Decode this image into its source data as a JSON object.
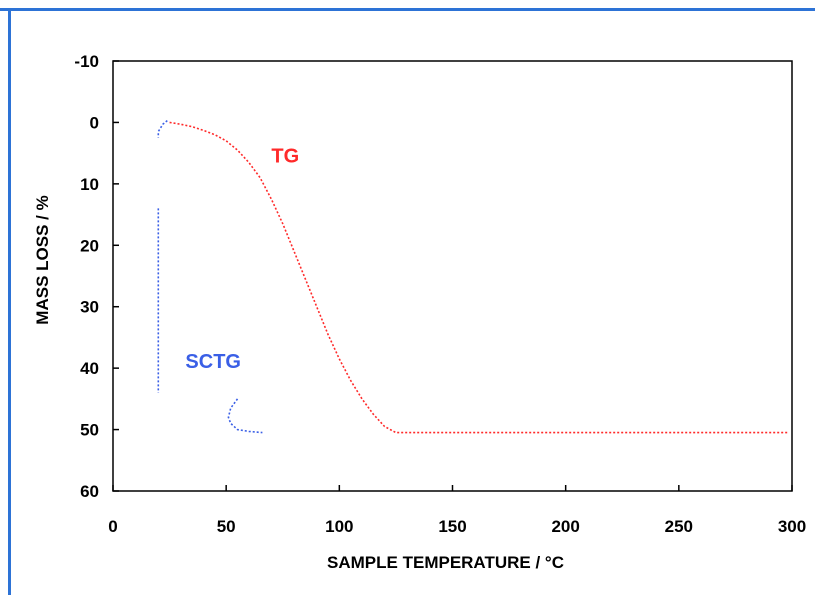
{
  "chart_data": {
    "type": "line",
    "xlabel": "SAMPLE TEMPERATURE / °C",
    "ylabel": "MASS LOSS / %",
    "xlim": [
      0,
      300
    ],
    "ylim": [
      -10,
      60
    ],
    "y_inverted": true,
    "x_ticks": [
      "0",
      "50",
      "100",
      "150",
      "200",
      "250",
      "300"
    ],
    "y_ticks": [
      "-10",
      "0",
      "10",
      "20",
      "30",
      "40",
      "50",
      "60"
    ],
    "grid": false,
    "series": [
      {
        "name": "TG",
        "color": "#ff2a2a",
        "style": "dotted",
        "label_at": [
          70,
          6.5
        ],
        "x": [
          25,
          30,
          35,
          40,
          45,
          50,
          55,
          60,
          65,
          70,
          75,
          80,
          85,
          90,
          95,
          100,
          105,
          110,
          115,
          120,
          125,
          135,
          150,
          160,
          200,
          250,
          298
        ],
        "y": [
          0,
          0.3,
          0.7,
          1.3,
          2.0,
          3.0,
          4.5,
          6.5,
          9.0,
          12.5,
          16.5,
          21.0,
          25.5,
          30.0,
          34.5,
          38.5,
          42.0,
          45.0,
          47.5,
          49.5,
          50.5,
          50.5,
          50.5,
          50.5,
          50.5,
          50.5,
          50.5
        ]
      },
      {
        "name": "SCTG",
        "color": "#3a5fe6",
        "style": "dotted",
        "label_at": [
          32,
          40
        ],
        "x": [
          24,
          22,
          20,
          20,
          20,
          20,
          20,
          20,
          20,
          20,
          20,
          20,
          20,
          20,
          55,
          52,
          51,
          52,
          55,
          60,
          66
        ],
        "y": [
          -0.3,
          0.3,
          1.5,
          2.5,
          14,
          18,
          22,
          26,
          30,
          33,
          36,
          39,
          42,
          44,
          45,
          46.5,
          48,
          49,
          50,
          50.3,
          50.5
        ],
        "segments_break_after": [
          3,
          13
        ]
      }
    ]
  }
}
